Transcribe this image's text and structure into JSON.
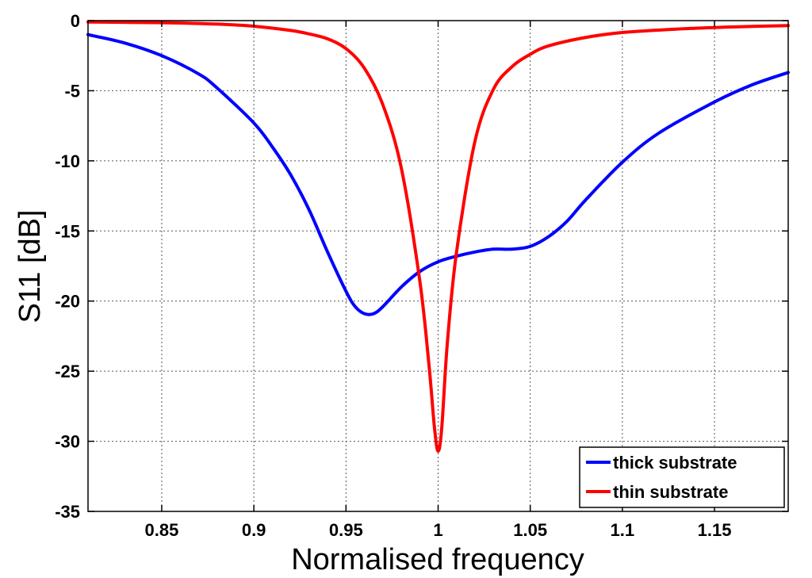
{
  "chart_data": {
    "type": "line",
    "title": "",
    "xlabel": "Normalised frequency",
    "ylabel": "S11 [dB]",
    "xlim": [
      0.81,
      1.19
    ],
    "ylim": [
      -35,
      0
    ],
    "xticks": [
      0.85,
      0.9,
      0.95,
      1,
      1.05,
      1.1,
      1.15
    ],
    "xtick_labels": [
      "0.85",
      "0.9",
      "0.95",
      "1",
      "1.05",
      "1.1",
      "1.15"
    ],
    "yticks": [
      0,
      -5,
      -10,
      -15,
      -20,
      -25,
      -30,
      -35
    ],
    "ytick_labels": [
      "0",
      "-5",
      "-10",
      "-15",
      "-20",
      "-25",
      "-30",
      "-35"
    ],
    "grid": true,
    "legend_position": "bottom-right",
    "series": [
      {
        "name": "thick substrate",
        "color": "#0000ff",
        "x": [
          0.81,
          0.83,
          0.85,
          0.87,
          0.88,
          0.9,
          0.91,
          0.92,
          0.93,
          0.94,
          0.95,
          0.955,
          0.96,
          0.965,
          0.97,
          0.98,
          0.99,
          1.0,
          1.01,
          1.02,
          1.03,
          1.04,
          1.05,
          1.06,
          1.07,
          1.08,
          1.1,
          1.12,
          1.15,
          1.17,
          1.19
        ],
        "y": [
          -1.0,
          -1.6,
          -2.5,
          -3.8,
          -4.8,
          -7.3,
          -9.0,
          -11.0,
          -13.5,
          -16.5,
          -19.3,
          -20.4,
          -20.9,
          -20.9,
          -20.4,
          -19.0,
          -17.9,
          -17.2,
          -16.8,
          -16.5,
          -16.3,
          -16.3,
          -16.1,
          -15.4,
          -14.3,
          -12.8,
          -10.1,
          -8.0,
          -5.8,
          -4.6,
          -3.7
        ]
      },
      {
        "name": "thin substrate",
        "color": "#ff0000",
        "x": [
          0.81,
          0.85,
          0.88,
          0.9,
          0.92,
          0.93,
          0.94,
          0.95,
          0.96,
          0.97,
          0.98,
          0.99,
          0.995,
          0.998,
          1.0,
          1.002,
          1.005,
          1.01,
          1.02,
          1.03,
          1.04,
          1.05,
          1.06,
          1.08,
          1.1,
          1.13,
          1.16,
          1.19
        ],
        "y": [
          -0.1,
          -0.15,
          -0.25,
          -0.4,
          -0.7,
          -0.95,
          -1.3,
          -2.0,
          -3.4,
          -6.0,
          -10.5,
          -18.5,
          -24.5,
          -29.0,
          -30.7,
          -29.0,
          -23.0,
          -16.5,
          -8.6,
          -4.9,
          -3.3,
          -2.4,
          -1.8,
          -1.2,
          -0.85,
          -0.6,
          -0.45,
          -0.35
        ]
      }
    ]
  }
}
